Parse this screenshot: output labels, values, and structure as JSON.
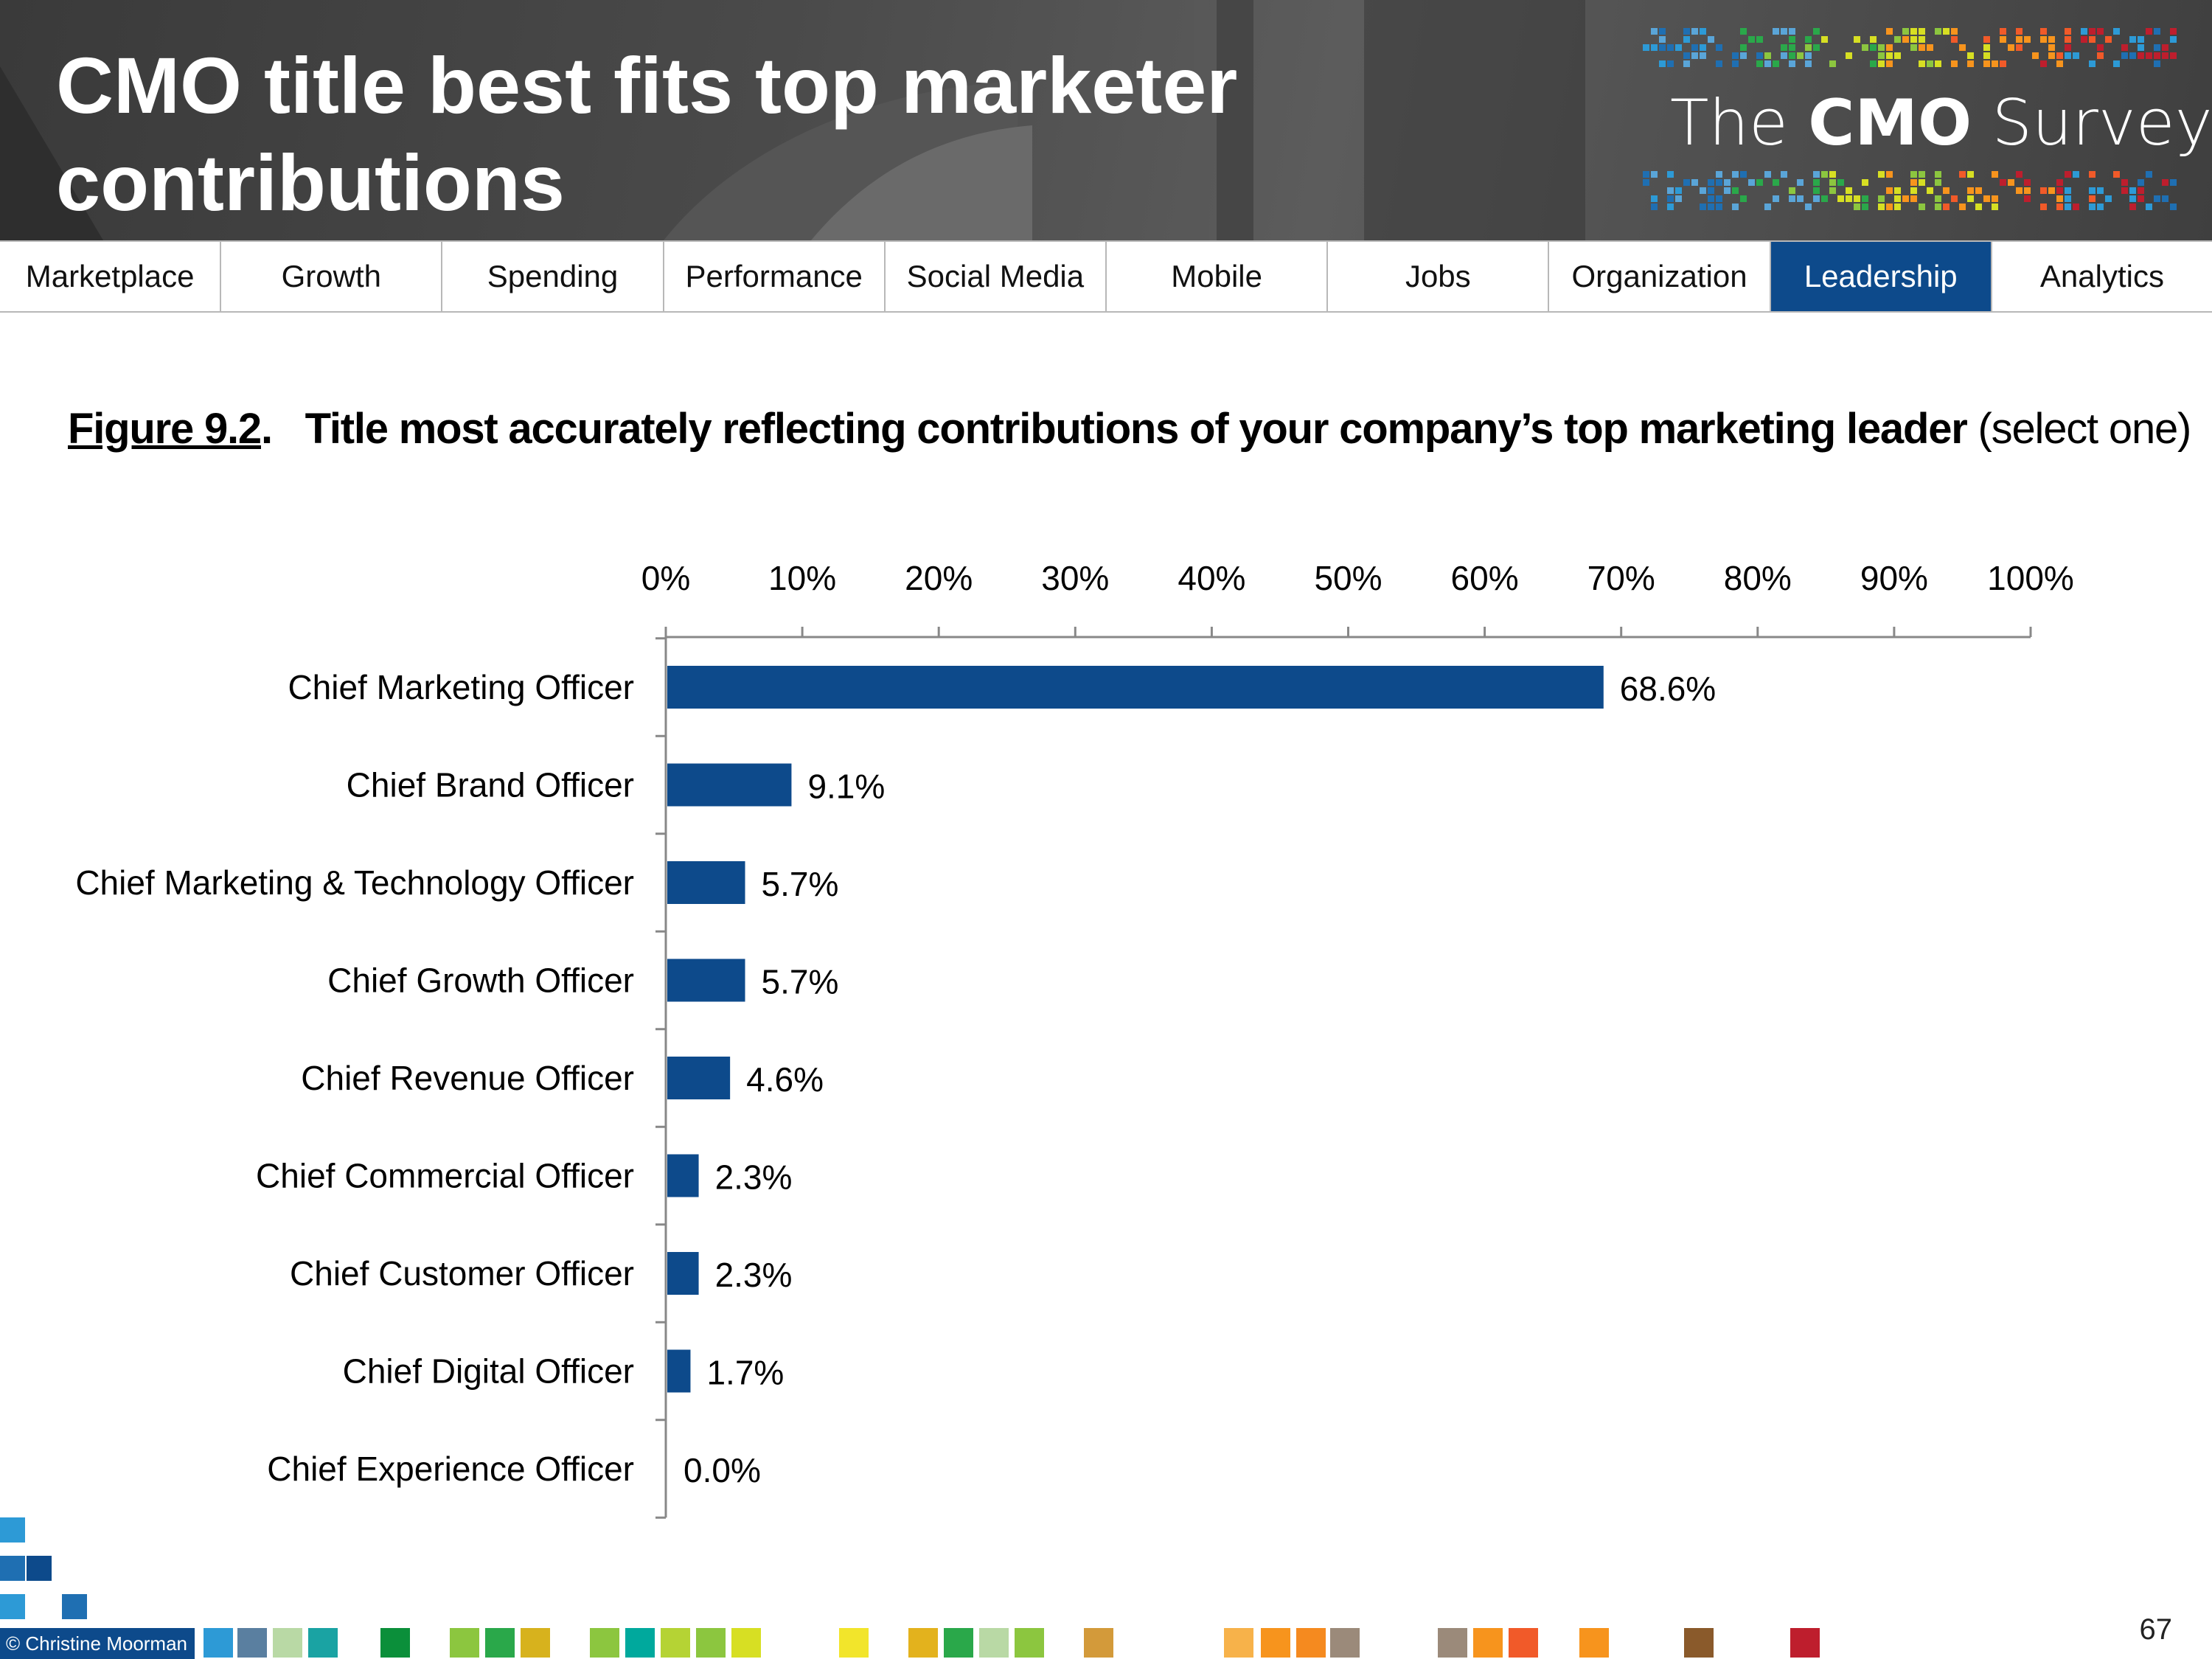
{
  "header": {
    "title_line1": "CMO title best fits top marketer",
    "title_line2": "contributions",
    "logo_prefix": "The ",
    "logo_bold": "CMO",
    "logo_suffix": " Survey"
  },
  "nav": {
    "items": [
      "Marketplace",
      "Growth",
      "Spending",
      "Performance",
      "Social Media",
      "Mobile",
      "Jobs",
      "Organization",
      "Leadership",
      "Analytics"
    ],
    "active_index": 8,
    "active_color": "#0d4a8b"
  },
  "caption": {
    "figure_label": "Figure 9.2",
    "punct": ".",
    "title": "Title most accurately reflecting contributions of your company’s top marketing leader",
    "suffix": "(select one)"
  },
  "chart_data": {
    "type": "bar",
    "orientation": "horizontal",
    "categories": [
      "Chief Marketing Officer",
      "Chief Brand Officer",
      "Chief Marketing & Technology Officer",
      "Chief Growth Officer",
      "Chief Revenue Officer",
      "Chief Commercial Officer",
      "Chief Customer Officer",
      "Chief Digital Officer",
      "Chief Experience Officer"
    ],
    "values": [
      68.6,
      9.1,
      5.7,
      5.7,
      4.6,
      2.3,
      2.3,
      1.7,
      0.0
    ],
    "value_labels": [
      "68.6%",
      "9.1%",
      "5.7%",
      "5.7%",
      "4.6%",
      "2.3%",
      "2.3%",
      "1.7%",
      "0.0%"
    ],
    "xlim": [
      0,
      100
    ],
    "x_ticks": [
      "0%",
      "10%",
      "20%",
      "30%",
      "40%",
      "50%",
      "60%",
      "70%",
      "80%",
      "90%",
      "100%"
    ],
    "axis_position": "top",
    "grid": false,
    "bar_color": "#0d4a8b"
  },
  "footer": {
    "copyright": "© Christine Moorman",
    "page_number": "67"
  }
}
